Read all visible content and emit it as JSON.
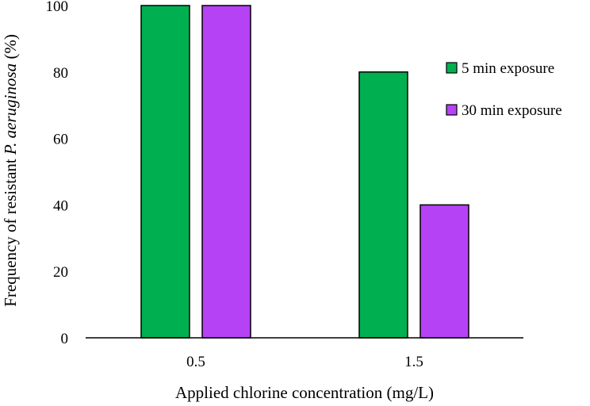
{
  "chart_data": {
    "type": "bar",
    "categories": [
      "0.5",
      "1.5"
    ],
    "series": [
      {
        "name": "5 min exposure",
        "values": [
          100,
          80
        ],
        "color": "#00B050"
      },
      {
        "name": "30 min exposure",
        "values": [
          100,
          40
        ],
        "color": "#B642F5"
      }
    ],
    "xlabel": "Applied chlorine concentration (mg/L)",
    "ylabel_prefix": "Frequency of resistant ",
    "ylabel_italic": "P. aeruginosa",
    "ylabel_suffix": " (%)",
    "ylim": [
      0,
      100
    ],
    "yticks": [
      "0",
      "20",
      "40",
      "60",
      "80",
      "100"
    ],
    "grid": false,
    "legend_position": "right"
  }
}
